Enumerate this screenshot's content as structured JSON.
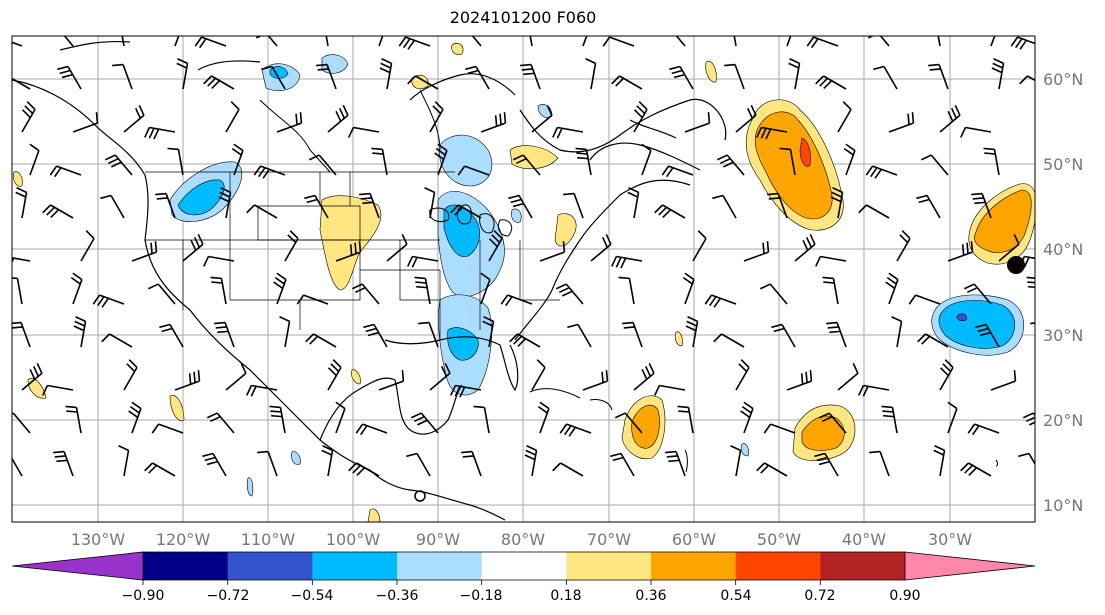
{
  "title": "2024101200 F060",
  "lon_labels": [
    "130°W",
    "120°W",
    "110°W",
    "100°W",
    "90°W",
    "80°W",
    "70°W",
    "60°W",
    "50°W",
    "40°W",
    "30°W"
  ],
  "lat_labels": [
    "60°N",
    "50°N",
    "40°N",
    "30°N",
    "20°N",
    "10°N"
  ],
  "colorbar": {
    "ticks": [
      "−0.90",
      "−0.72",
      "−0.54",
      "−0.36",
      "−0.18",
      "0.18",
      "0.36",
      "0.54",
      "0.72",
      "0.90"
    ],
    "colors": [
      "#9933cc",
      "#000088",
      "#3355cc",
      "#00bbff",
      "#aaddff",
      "#ffffff",
      "#ffe680",
      "#ffa500",
      "#ff4500",
      "#b22222",
      "#ff88aa"
    ]
  },
  "map": {
    "lon_range": [
      -141,
      -21
    ],
    "lat_range": [
      8,
      65
    ],
    "gridline_lons": [
      -130,
      -120,
      -110,
      -100,
      -90,
      -80,
      -70,
      -60,
      -50,
      -40,
      -30
    ],
    "gridline_lats": [
      10,
      20,
      30,
      40,
      50,
      60
    ]
  }
}
